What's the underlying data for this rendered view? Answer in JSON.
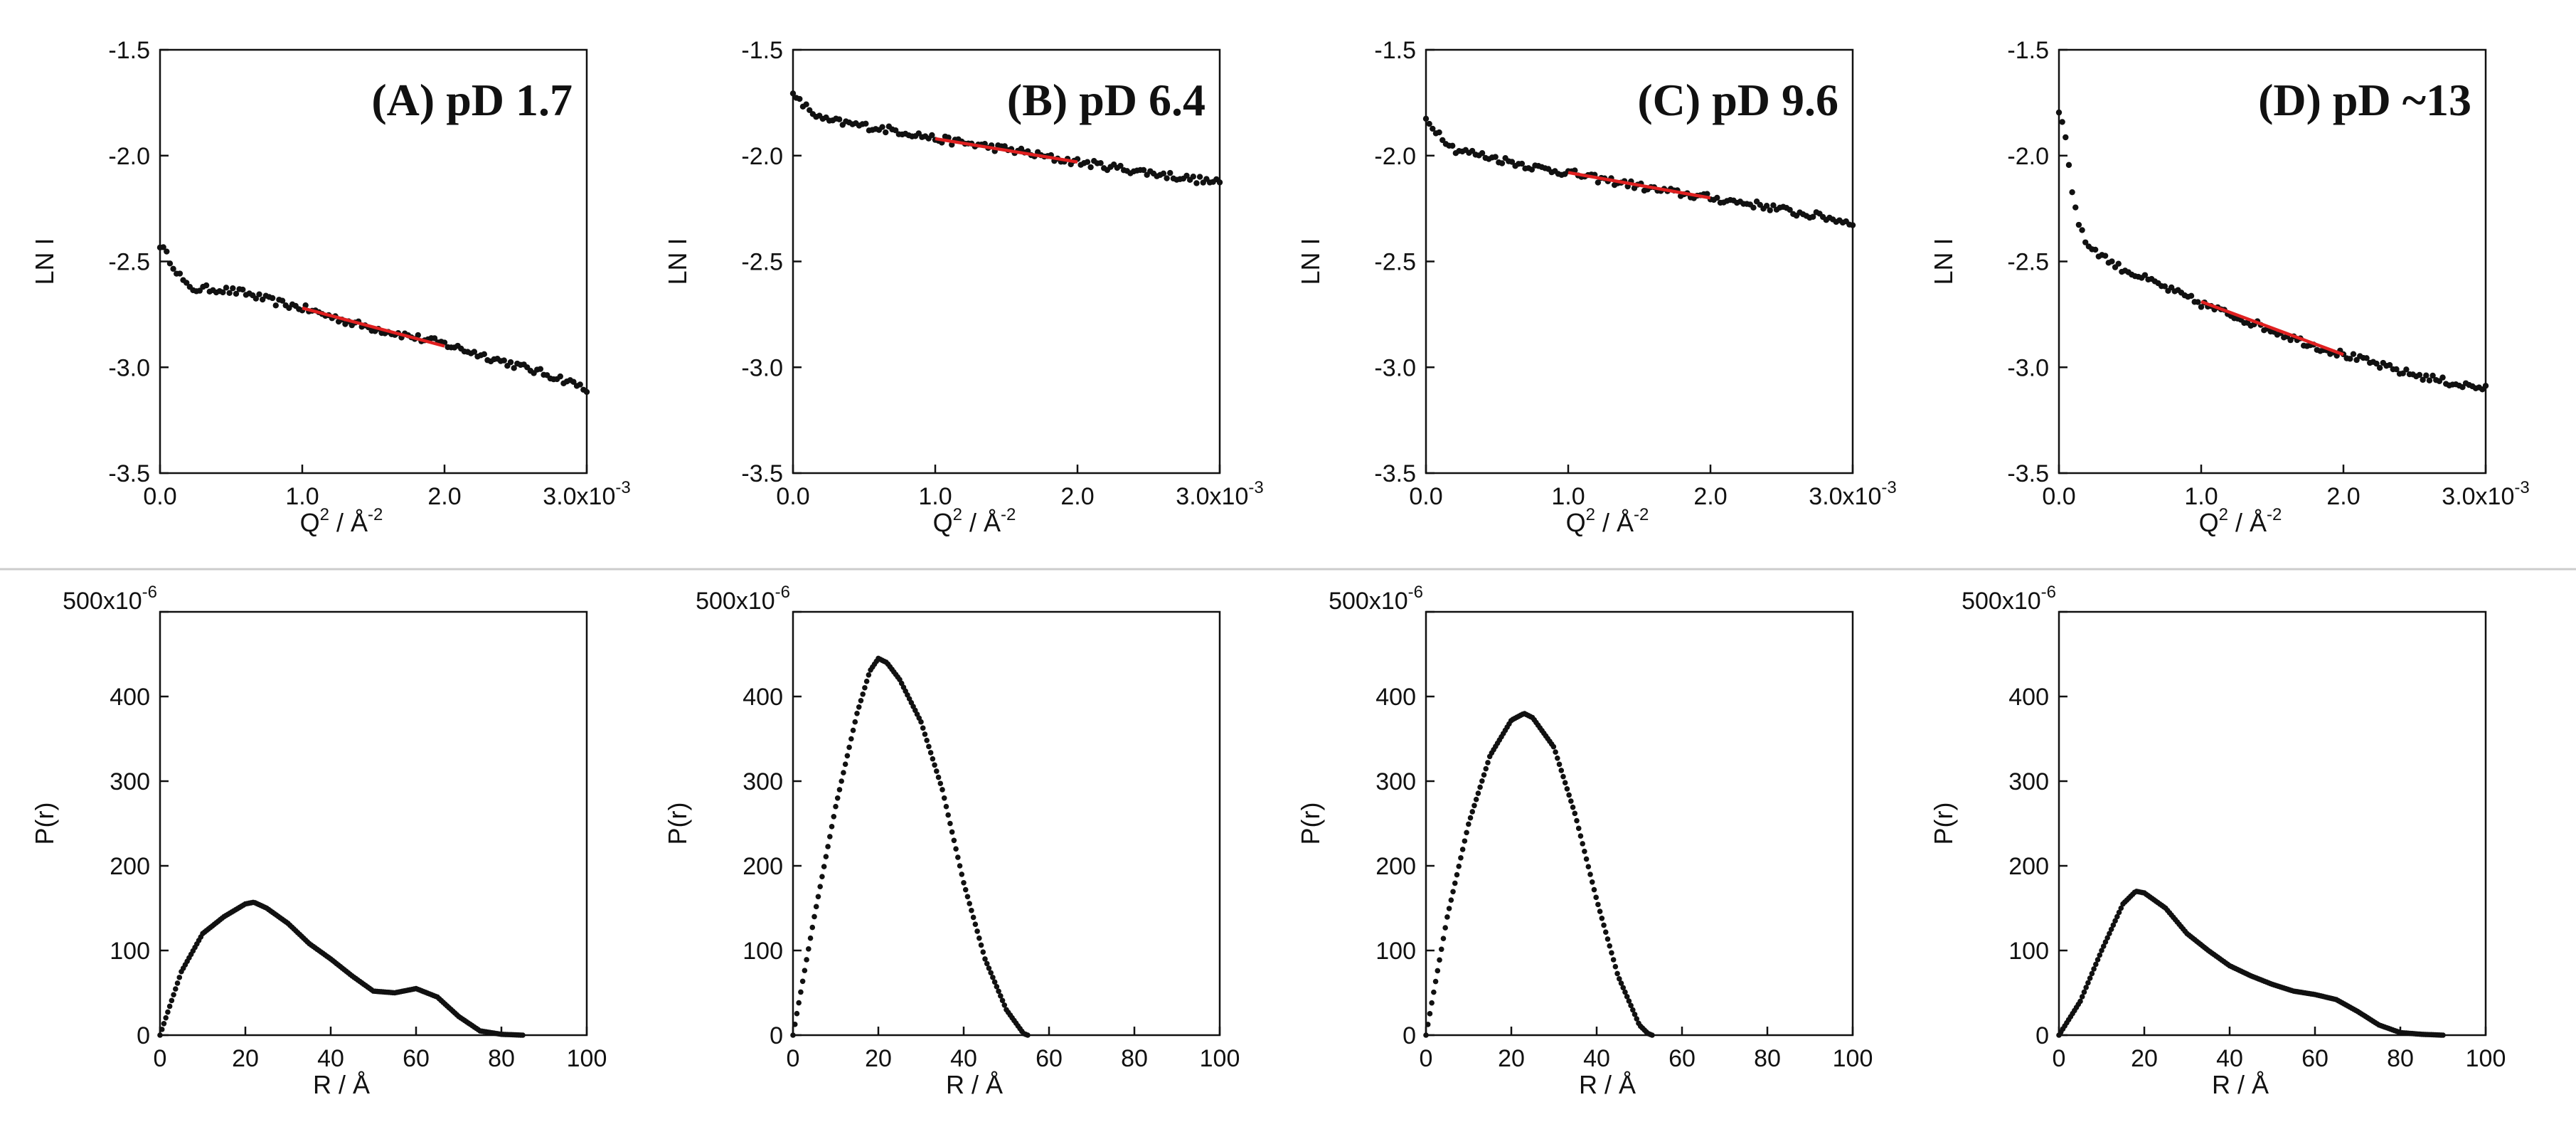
{
  "chart_data": [
    {
      "type": "scatter",
      "title": "(A) pD 1.7",
      "xlabel": "Q2 / A-2",
      "ylabel": "LN I",
      "xlim": [
        0,
        0.003
      ],
      "ylim": [
        -3.5,
        -1.5
      ],
      "x_ticks": [
        "0.0",
        "1.0",
        "2.0",
        "3.0x10-3"
      ],
      "y_ticks": [
        "-1.5",
        "-2.0",
        "-2.5",
        "-3.0",
        "-3.5"
      ],
      "series": [
        {
          "name": "data",
          "x": [
            0.0,
            0.0002,
            0.0004,
            0.0006,
            0.0008,
            0.001,
            0.0012,
            0.0014,
            0.0016,
            0.0018,
            0.002,
            0.0022,
            0.0024,
            0.0026,
            0.0028,
            0.003
          ],
          "y": [
            -2.42,
            -2.63,
            -2.63,
            -2.65,
            -2.69,
            -2.72,
            -2.76,
            -2.8,
            -2.83,
            -2.86,
            -2.89,
            -2.93,
            -2.97,
            -3.01,
            -3.05,
            -3.1
          ]
        },
        {
          "name": "fit",
          "x": [
            0.001,
            0.002
          ],
          "y": [
            -2.72,
            -2.9
          ]
        }
      ]
    },
    {
      "type": "scatter",
      "title": "(B) pD 6.4",
      "xlabel": "Q2 / A-2",
      "ylabel": "LN I",
      "xlim": [
        0,
        0.003
      ],
      "ylim": [
        -3.5,
        -1.5
      ],
      "x_ticks": [
        "0.0",
        "1.0",
        "2.0",
        "3.0x10-3"
      ],
      "y_ticks": [
        "-1.5",
        "-2.0",
        "-2.5",
        "-3.0",
        "-3.5"
      ],
      "series": [
        {
          "name": "data",
          "x": [
            0.0,
            0.0002,
            0.0004,
            0.0006,
            0.0008,
            0.001,
            0.0012,
            0.0014,
            0.0016,
            0.0018,
            0.002,
            0.0022,
            0.0024,
            0.0026,
            0.0028,
            0.003
          ],
          "y": [
            -1.72,
            -1.83,
            -1.85,
            -1.87,
            -1.89,
            -1.92,
            -1.94,
            -1.96,
            -1.98,
            -2.01,
            -2.03,
            -2.05,
            -2.07,
            -2.09,
            -2.11,
            -2.13
          ]
        },
        {
          "name": "fit",
          "x": [
            0.001,
            0.002
          ],
          "y": [
            -1.92,
            -2.03
          ]
        }
      ]
    },
    {
      "type": "scatter",
      "title": "(C) pD 9.6",
      "xlabel": "Q2 / A-2",
      "ylabel": "LN I",
      "xlim": [
        0,
        0.003
      ],
      "ylim": [
        -3.5,
        -1.5
      ],
      "x_ticks": [
        "0.0",
        "1.0",
        "2.0",
        "3.0x10-3"
      ],
      "y_ticks": [
        "-1.5",
        "-2.0",
        "-2.5",
        "-3.0",
        "-3.5"
      ],
      "series": [
        {
          "name": "data",
          "x": [
            0.0,
            0.0002,
            0.0004,
            0.0006,
            0.0008,
            0.001,
            0.0012,
            0.0014,
            0.0016,
            0.0018,
            0.002,
            0.0022,
            0.0024,
            0.0026,
            0.0028,
            0.003
          ],
          "y": [
            -1.83,
            -1.97,
            -2.0,
            -2.03,
            -2.06,
            -2.08,
            -2.11,
            -2.13,
            -2.16,
            -2.18,
            -2.2,
            -2.22,
            -2.24,
            -2.27,
            -2.29,
            -2.32
          ]
        },
        {
          "name": "fit",
          "x": [
            0.001,
            0.002
          ],
          "y": [
            -2.08,
            -2.2
          ]
        }
      ]
    },
    {
      "type": "scatter",
      "title": "(D) pD ~13",
      "xlabel": "Q2 / A-2",
      "ylabel": "LN I",
      "xlim": [
        0,
        0.003
      ],
      "ylim": [
        -3.5,
        -1.5
      ],
      "x_ticks": [
        "0.0",
        "1.0",
        "2.0",
        "3.0x10-3"
      ],
      "y_ticks": [
        "-1.5",
        "-2.0",
        "-2.5",
        "-3.0",
        "-3.5"
      ],
      "series": [
        {
          "name": "data",
          "x": [
            0.0,
            5e-05,
            0.0001,
            0.00015,
            0.0002,
            0.0003,
            0.0004,
            0.0006,
            0.0008,
            0.001,
            0.0012,
            0.0014,
            0.0016,
            0.0018,
            0.002,
            0.0022,
            0.0024,
            0.0026,
            0.0028,
            0.003
          ],
          "y": [
            -1.78,
            -1.93,
            -2.2,
            -2.35,
            -2.42,
            -2.47,
            -2.52,
            -2.58,
            -2.64,
            -2.7,
            -2.75,
            -2.8,
            -2.85,
            -2.9,
            -2.94,
            -2.98,
            -3.02,
            -3.05,
            -3.08,
            -3.1
          ]
        },
        {
          "name": "fit",
          "x": [
            0.001,
            0.002
          ],
          "y": [
            -2.69,
            -2.94
          ]
        }
      ]
    },
    {
      "type": "scatter",
      "title": "",
      "xlabel": "R / A",
      "ylabel": "P(r)",
      "xlim": [
        0,
        100
      ],
      "ylim": [
        0,
        0.0005
      ],
      "x_ticks": [
        "0",
        "20",
        "40",
        "60",
        "80",
        "100"
      ],
      "y_ticks": [
        "0",
        "100",
        "200",
        "300",
        "400",
        "500x10-6"
      ],
      "series": [
        {
          "name": "P(r)",
          "x": [
            0,
            5,
            10,
            15,
            20,
            22,
            25,
            30,
            35,
            40,
            45,
            50,
            55,
            60,
            65,
            70,
            75,
            80,
            85
          ],
          "y": [
            0,
            7.5e-05,
            0.00012,
            0.00014,
            0.000155,
            0.000157,
            0.00015,
            0.000132,
            0.000108,
            9e-05,
            7e-05,
            5.2e-05,
            5e-05,
            5.5e-05,
            4.5e-05,
            2.2e-05,
            5e-06,
            1e-06,
            0
          ]
        }
      ]
    },
    {
      "type": "scatter",
      "title": "",
      "xlabel": "R / A",
      "ylabel": "P(r)",
      "xlim": [
        0,
        100
      ],
      "ylim": [
        0,
        0.0005
      ],
      "x_ticks": [
        "0",
        "20",
        "40",
        "60",
        "80",
        "100"
      ],
      "y_ticks": [
        "0",
        "100",
        "200",
        "300",
        "400",
        "500x10-6"
      ],
      "series": [
        {
          "name": "P(r)",
          "x": [
            0,
            5,
            10,
            15,
            18,
            20,
            22,
            25,
            30,
            35,
            40,
            45,
            50,
            54,
            55
          ],
          "y": [
            0,
            0.00014,
            0.00027,
            0.00038,
            0.00043,
            0.000445,
            0.00044,
            0.00042,
            0.00037,
            0.00029,
            0.00018,
            9e-05,
            3e-05,
            2e-06,
            0
          ]
        }
      ]
    },
    {
      "type": "scatter",
      "title": "",
      "xlabel": "R / A",
      "ylabel": "P(r)",
      "xlim": [
        0,
        100
      ],
      "ylim": [
        0,
        0.0005
      ],
      "x_ticks": [
        "0",
        "20",
        "40",
        "60",
        "80",
        "100"
      ],
      "y_ticks": [
        "0",
        "100",
        "200",
        "300",
        "400",
        "500x10-6"
      ],
      "series": [
        {
          "name": "P(r)",
          "x": [
            0,
            5,
            10,
            15,
            20,
            23,
            25,
            30,
            35,
            40,
            45,
            50,
            52,
            53
          ],
          "y": [
            0,
            0.00014,
            0.00025,
            0.00033,
            0.000372,
            0.00038,
            0.000375,
            0.00034,
            0.00026,
            0.00016,
            7e-05,
            1.2e-05,
            2e-06,
            0
          ]
        }
      ]
    },
    {
      "type": "scatter",
      "title": "",
      "xlabel": "R / A",
      "ylabel": "P(r)",
      "xlim": [
        0,
        100
      ],
      "ylim": [
        0,
        0.0005
      ],
      "x_ticks": [
        "0",
        "20",
        "40",
        "60",
        "80",
        "100"
      ],
      "y_ticks": [
        "0",
        "100",
        "200",
        "300",
        "400",
        "500x10-6"
      ],
      "series": [
        {
          "name": "P(r)",
          "x": [
            0,
            5,
            10,
            15,
            18,
            20,
            25,
            30,
            35,
            40,
            45,
            50,
            55,
            60,
            65,
            70,
            75,
            80,
            85,
            90
          ],
          "y": [
            0,
            4e-05,
            0.0001,
            0.000155,
            0.00017,
            0.000168,
            0.00015,
            0.00012,
            0.0001,
            8.2e-05,
            7e-05,
            6e-05,
            5.2e-05,
            4.8e-05,
            4.2e-05,
            2.8e-05,
            1.2e-05,
            3e-06,
            1e-06,
            0
          ]
        }
      ]
    }
  ]
}
